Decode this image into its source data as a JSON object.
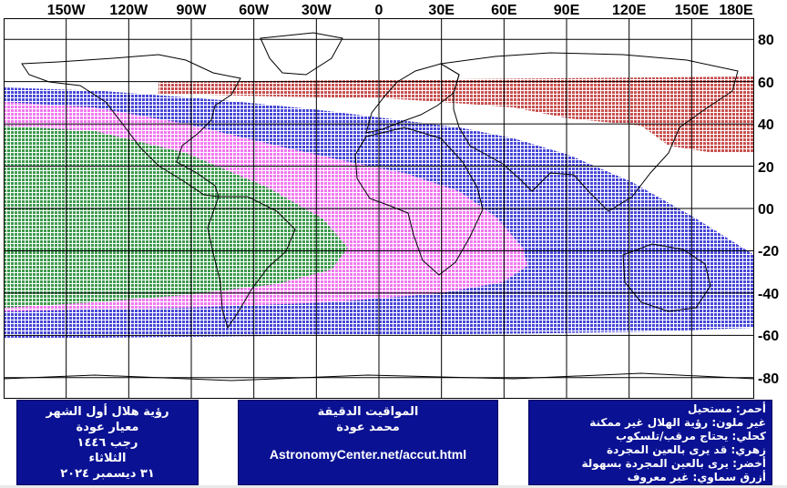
{
  "longitude_labels": [
    "150W",
    "120W",
    "90W",
    "60W",
    "30W",
    "0",
    "30E",
    "60E",
    "90E",
    "120E",
    "150E",
    "180E"
  ],
  "latitude_labels": [
    "80",
    "60",
    "40",
    "20",
    "00",
    "-20",
    "-40",
    "-60",
    "-80"
  ],
  "zone_colors": {
    "red": "#c85050",
    "blue": "#4848d8",
    "magenta": "#f078f0",
    "green": "#3e9a4e",
    "grid": "#000000",
    "box_bg": "#0a1193"
  },
  "info_left": {
    "line1": "رؤية هلال أول الشهر",
    "line2": "معيار عودة",
    "line3": "رجب ١٤٤٦",
    "line4": "الثلاثاء",
    "line5": "٣١ ديسمبر ٢٠٢٤"
  },
  "info_mid": {
    "line1": "المواقيت الدقيقة",
    "line2": "محمد عودة",
    "url": "AstronomyCenter.net/accut.html"
  },
  "legend": {
    "red": "أحمر: مستحيل",
    "none": "غير ملون: رؤية الهلال غير ممكنة",
    "blue": "كحلي: يحتاج مرقب/تلسكوب",
    "magenta": "زهري: قد يرى بالعين المجردة",
    "green": "أخضر: يرى بالعين المجردة بسهولة",
    "skyblue": "أزرق سماوي: غير معروف"
  }
}
